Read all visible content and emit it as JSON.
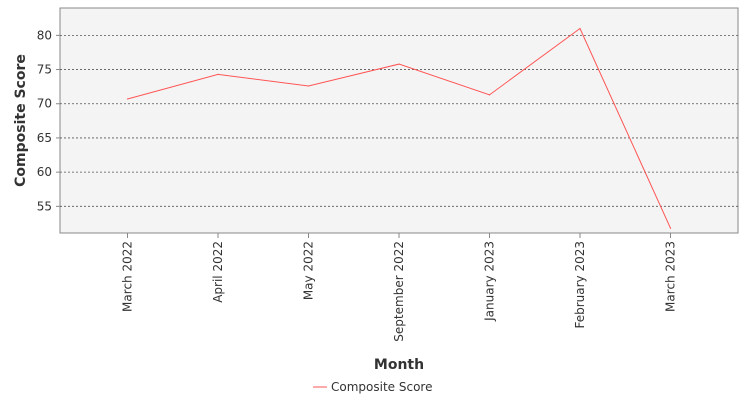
{
  "chart_data": {
    "type": "line",
    "categories": [
      "March 2022",
      "April 2022",
      "May 2022",
      "September 2022",
      "January 2023",
      "February 2023",
      "March 2023"
    ],
    "series": [
      {
        "name": "Composite Score",
        "values": [
          70.7,
          74.3,
          72.6,
          75.8,
          71.3,
          81.0,
          51.8
        ]
      }
    ],
    "xlabel": "Month",
    "ylabel": "Composite Score",
    "ylim": [
      51.1,
      84.0
    ],
    "yticks": [
      55,
      60,
      65,
      70,
      75,
      80
    ],
    "grid": true,
    "legend_position": "bottom-center",
    "colors": {
      "series_line": "#ff5555",
      "plot_bg": "#f4f4f4",
      "grid": "#555555",
      "axis": "#888888"
    }
  }
}
